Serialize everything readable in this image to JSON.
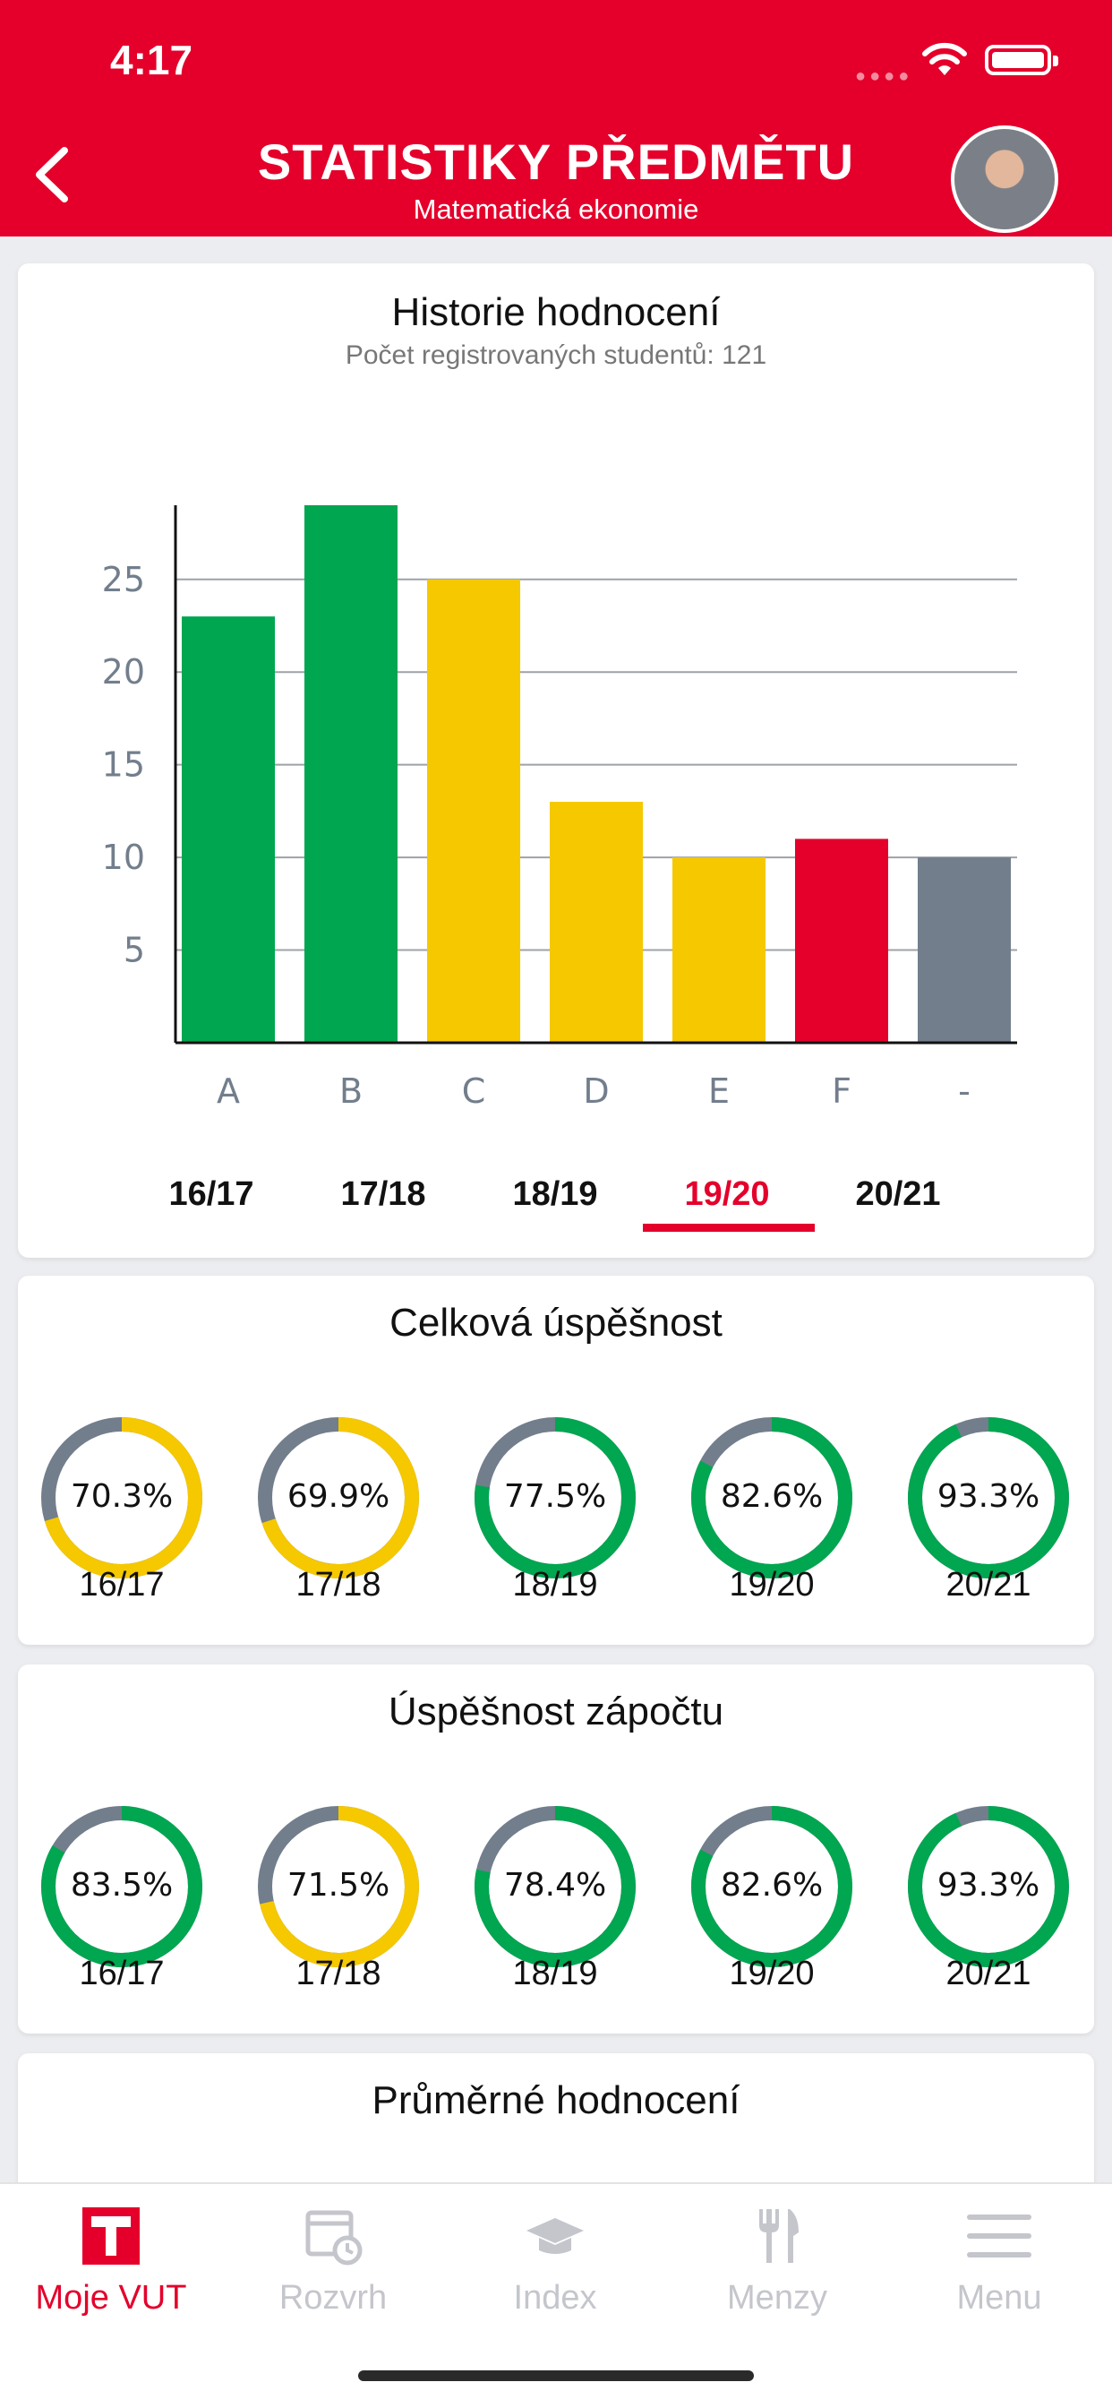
{
  "status_bar": {
    "time": "4:17"
  },
  "header": {
    "title": "STATISTIKY PŘEDMĚTU",
    "subtitle": "Matematická ekonomie"
  },
  "history_card": {
    "title": "Historie hodnocení",
    "subtitle": "Počet registrovaných studentů: 121"
  },
  "chart_data": {
    "type": "bar",
    "categories": [
      "A",
      "B",
      "C",
      "D",
      "E",
      "F",
      "-"
    ],
    "values": [
      23,
      29,
      25,
      13,
      10,
      11,
      10
    ],
    "colors": [
      "#00a650",
      "#00a650",
      "#f5c800",
      "#f5c800",
      "#f5c800",
      "#e4002b",
      "#727e8c"
    ],
    "yticks": [
      5,
      10,
      15,
      20,
      25
    ],
    "ylim": [
      0,
      29
    ],
    "grid": true
  },
  "year_tabs": {
    "items": [
      "16/17",
      "17/18",
      "18/19",
      "19/20",
      "20/21"
    ],
    "active_index": 3
  },
  "overall_success": {
    "title": "Celková úspěšnost",
    "items": [
      {
        "value": "70.3%",
        "fraction": 0.703,
        "year": "16/17",
        "color": "#f5c800"
      },
      {
        "value": "69.9%",
        "fraction": 0.699,
        "year": "17/18",
        "color": "#f5c800"
      },
      {
        "value": "77.5%",
        "fraction": 0.775,
        "year": "18/19",
        "color": "#00a650"
      },
      {
        "value": "82.6%",
        "fraction": 0.826,
        "year": "19/20",
        "color": "#00a650"
      },
      {
        "value": "93.3%",
        "fraction": 0.933,
        "year": "20/21",
        "color": "#00a650"
      }
    ]
  },
  "credit_success": {
    "title": "Úspěšnost zápočtu",
    "items": [
      {
        "value": "83.5%",
        "fraction": 0.835,
        "year": "16/17",
        "color": "#00a650"
      },
      {
        "value": "71.5%",
        "fraction": 0.715,
        "year": "17/18",
        "color": "#f5c800"
      },
      {
        "value": "78.4%",
        "fraction": 0.784,
        "year": "18/19",
        "color": "#00a650"
      },
      {
        "value": "82.6%",
        "fraction": 0.826,
        "year": "19/20",
        "color": "#00a650"
      },
      {
        "value": "93.3%",
        "fraction": 0.933,
        "year": "20/21",
        "color": "#00a650"
      }
    ]
  },
  "average_card": {
    "title": "Průměrné hodnocení"
  },
  "nav": {
    "items": [
      {
        "label": "Moje VUT",
        "icon": "vut-logo-icon",
        "active": true
      },
      {
        "label": "Rozvrh",
        "icon": "calendar-clock-icon",
        "active": false
      },
      {
        "label": "Index",
        "icon": "graduation-cap-icon",
        "active": false
      },
      {
        "label": "Menzy",
        "icon": "fork-knife-icon",
        "active": false
      },
      {
        "label": "Menu",
        "icon": "hamburger-menu-icon",
        "active": false
      }
    ]
  },
  "colors": {
    "brand": "#e4002b",
    "success": "#00a650",
    "warning": "#f5c800",
    "neutral": "#727e8c"
  }
}
